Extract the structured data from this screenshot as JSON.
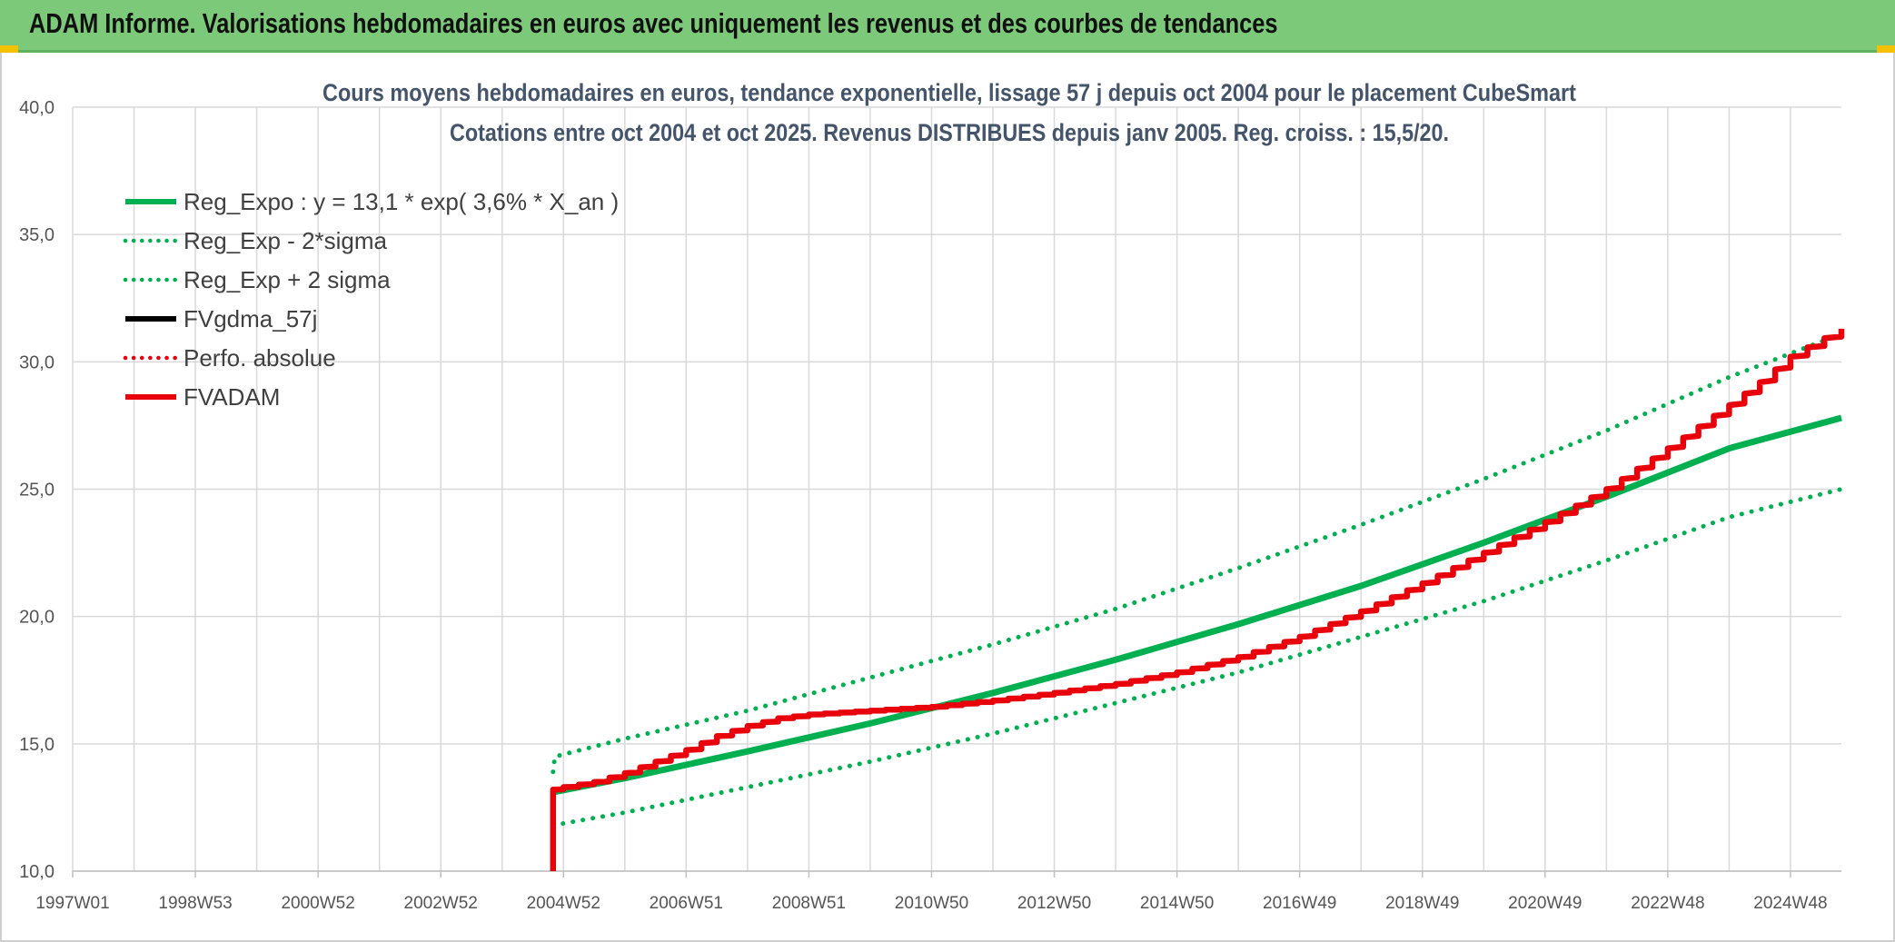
{
  "banner": {
    "title": "ADAM Informe. Valorisations hebdomadaires en euros avec uniquement les revenus et des courbes de tendances"
  },
  "colors": {
    "banner_bg": "#7dc97a",
    "reg_green": "#00b050",
    "adam_red": "#e8000b",
    "gdma_black": "#000000",
    "grid": "#d9d9d9",
    "title_text": "#44546a"
  },
  "chart_data": {
    "type": "line",
    "title": "Cours moyens hebdomadaires en euros, tendance exponentielle, lissage 57 j depuis oct 2004 pour le placement CubeSmart",
    "subtitle": "Cotations entre oct 2004 et oct 2025. Revenus DISTRIBUES depuis janv 2005. Reg. croiss. : 15,5/20.",
    "xlabel": "",
    "ylabel": "",
    "x_tick_labels": [
      "1997W01",
      "1998W53",
      "2000W52",
      "2002W52",
      "2004W52",
      "2006W51",
      "2008W51",
      "2010W50",
      "2012W50",
      "2014W50",
      "2016W49",
      "2018W49",
      "2020W49",
      "2022W48",
      "2024W48"
    ],
    "x_tick_years": [
      1997.0,
      1999.0,
      2001.0,
      2003.0,
      2005.0,
      2007.0,
      2009.0,
      2011.0,
      2013.0,
      2015.0,
      2017.0,
      2019.0,
      2021.0,
      2023.0,
      2025.0
    ],
    "xlim": [
      1997.0,
      2025.83
    ],
    "y_tick_labels": [
      "10,0",
      "15,0",
      "20,0",
      "25,0",
      "30,0",
      "35,0",
      "40,0"
    ],
    "y_tick_values": [
      10,
      15,
      20,
      25,
      30,
      35,
      40
    ],
    "ylim": [
      10,
      40
    ],
    "grid": true,
    "legend_position": "top-left",
    "series": [
      {
        "name": "Reg_Expo : y = 13,1 * exp( 3,6% *  X_an )",
        "style": "solid",
        "color": "#00b050",
        "x": [
          2004.83,
          2006,
          2008,
          2010,
          2012,
          2014,
          2016,
          2018,
          2020,
          2022,
          2024,
          2025.83
        ],
        "y": [
          13.1,
          13.65,
          14.7,
          15.8,
          17.0,
          18.3,
          19.7,
          21.2,
          22.9,
          24.7,
          26.6,
          27.8
        ]
      },
      {
        "name": "Reg_Exp - 2*sigma",
        "style": "dotted",
        "color": "#00b050",
        "x": [
          2004.83,
          2006,
          2008,
          2010,
          2012,
          2014,
          2016,
          2018,
          2020,
          2022,
          2024,
          2025.83
        ],
        "y": [
          11.8,
          12.3,
          13.3,
          14.3,
          15.4,
          16.6,
          17.8,
          19.2,
          20.6,
          22.2,
          23.9,
          25.0
        ]
      },
      {
        "name": "Reg_Exp + 2 sigma",
        "style": "dotted",
        "color": "#00b050",
        "x": [
          2004.83,
          2004.86,
          2006,
          2008,
          2010,
          2012,
          2014,
          2016,
          2018,
          2020,
          2022,
          2024,
          2025.83
        ],
        "y": [
          13.9,
          14.5,
          15.2,
          16.3,
          17.6,
          18.9,
          20.3,
          21.9,
          23.6,
          25.4,
          27.3,
          29.4,
          31.1
        ]
      },
      {
        "name": "FVgdma_57j",
        "style": "solid",
        "color": "#000000",
        "x": [],
        "y": []
      },
      {
        "name": "Perfo. absolue",
        "style": "dotted",
        "color": "#e8000b",
        "x": [],
        "y": []
      },
      {
        "name": "FVADAM",
        "style": "solid",
        "color": "#e8000b",
        "x": [
          2004.83,
          2004.83,
          2005.0,
          2005.5,
          2006.0,
          2006.5,
          2007.0,
          2007.5,
          2008.0,
          2008.5,
          2009.0,
          2010.0,
          2011.0,
          2012.0,
          2013.0,
          2014.0,
          2015.0,
          2016.0,
          2017.0,
          2018.0,
          2019.0,
          2020.0,
          2021.0,
          2022.0,
          2023.0,
          2024.0,
          2024.5,
          2025.0,
          2025.83
        ],
        "y": [
          10.0,
          13.2,
          13.3,
          13.5,
          13.85,
          14.3,
          14.75,
          15.3,
          15.7,
          16.0,
          16.15,
          16.3,
          16.45,
          16.7,
          17.0,
          17.35,
          17.8,
          18.4,
          19.2,
          20.2,
          21.3,
          22.5,
          23.7,
          25.0,
          26.6,
          28.3,
          29.2,
          30.2,
          31.3
        ]
      }
    ]
  }
}
